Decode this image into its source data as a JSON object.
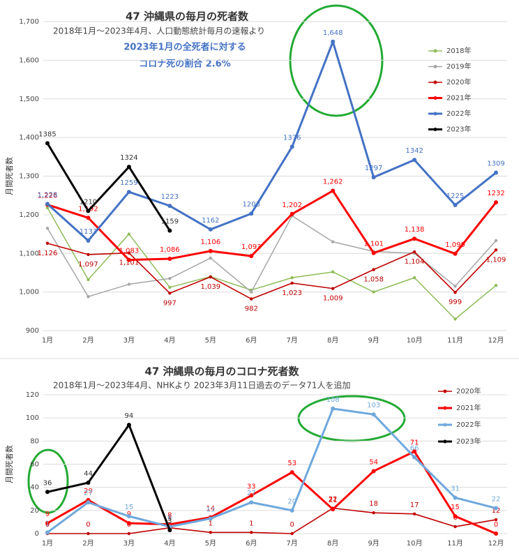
{
  "chart_data": [
    {
      "type": "line",
      "title": "47  沖縄県の毎月の死者数",
      "subtitle": "2018年1月～2023年4月、人口動態統計毎月の速報より",
      "annotations": [
        "2023年1月の全死者に対する",
        "コロナ死の割合  2.6%"
      ],
      "annotation_color": "#4472c4",
      "ylabel": "月間死者数",
      "categories": [
        "1月",
        "2月",
        "3月",
        "4月",
        "5月",
        "6月",
        "7月",
        "8月",
        "9月",
        "10月",
        "11月",
        "12月"
      ],
      "ylim": [
        900,
        1700
      ],
      "yticks": [
        {
          "value": 900,
          "label": "900"
        },
        {
          "value": 1000,
          "label": "1,000"
        },
        {
          "value": 1100,
          "label": "1,100"
        },
        {
          "value": 1200,
          "label": "1,200"
        },
        {
          "value": 1300,
          "label": "1,300"
        },
        {
          "value": 1400,
          "label": "1,400"
        },
        {
          "value": 1500,
          "label": "1,500"
        },
        {
          "value": 1600,
          "label": "1,600"
        },
        {
          "value": 1700,
          "label": "1,700"
        }
      ],
      "grid": true,
      "series": [
        {
          "name": "2018年",
          "color": "#8fbc5a",
          "values": [
            1218,
            1032,
            1150,
            1012,
            1040,
            1005,
            1037,
            1052,
            1000,
            1037,
            930,
            1017
          ]
        },
        {
          "name": "2019年",
          "color": "#a6a6a6",
          "values": [
            1165,
            988,
            1020,
            1035,
            1088,
            1000,
            1197,
            1130,
            1105,
            1100,
            1015,
            1133
          ]
        },
        {
          "name": "2020年",
          "color": "#c00000",
          "values": [
            1126,
            1097,
            1101,
            997,
            1039,
            982,
            1023,
            1009,
            1058,
            1104,
            999,
            1109
          ],
          "value_labels": [
            "1,126",
            "1,097",
            "1,101",
            "997",
            "1,039",
            "982",
            "1,023",
            "1,009",
            "1,058",
            "1,104",
            "999",
            "1,109"
          ]
        },
        {
          "name": "2021年",
          "color": "#ff0000",
          "values": [
            1226,
            1192,
            1083,
            1086,
            1106,
            1093,
            1202,
            1262,
            1101,
            1138,
            1099,
            1232
          ],
          "value_labels": [
            "1,226",
            "1,192",
            "1,083",
            "1,086",
            "1,106",
            "1,093",
            "1,202",
            "1,262",
            "1,101",
            "1,138",
            "1,099",
            "1232"
          ]
        },
        {
          "name": "2022年",
          "color": "#4472c4",
          "values": [
            1228,
            1133,
            1259,
            1223,
            1162,
            1203,
            1376,
            1648,
            1297,
            1342,
            1225,
            1309
          ],
          "value_labels": [
            "1,228",
            "1133",
            "1259",
            "1223",
            "1162",
            "1203",
            "1376",
            "1,648",
            "1297",
            "1342",
            "1225",
            "1309"
          ]
        },
        {
          "name": "2023年",
          "color": "#000000",
          "values": [
            1385,
            1210,
            1324,
            1159,
            null,
            null,
            null,
            null,
            null,
            null,
            null,
            null
          ],
          "value_labels": [
            "1385",
            "1210",
            "1324",
            "1159",
            null,
            null,
            null,
            null,
            null,
            null,
            null,
            null
          ]
        }
      ]
    },
    {
      "type": "line",
      "title": "47  沖縄県の毎月のコロナ死者数",
      "subtitle": "2018年1月～2023年4月、NHKより  2023年3月11日過去のデータ71人を追加",
      "ylabel": "月間死者数",
      "categories": [
        "1月",
        "2月",
        "3月",
        "4月",
        "5月",
        "6月",
        "7月",
        "8月",
        "9月",
        "10月",
        "11月",
        "12月"
      ],
      "ylim": [
        0,
        120
      ],
      "yticks": [
        0,
        20,
        40,
        60,
        80,
        100,
        120
      ],
      "grid": true,
      "series": [
        {
          "name": "2020年",
          "color": "#c00000",
          "values": [
            0,
            0,
            0,
            5,
            1,
            1,
            0,
            22,
            18,
            17,
            6,
            12
          ],
          "value_labels": [
            "0",
            "0",
            "0",
            "5",
            "1",
            "1",
            "0",
            "22",
            "18",
            "17",
            "6",
            "12"
          ]
        },
        {
          "name": "2021年",
          "color": "#ff0000",
          "values": [
            9,
            29,
            9,
            8,
            14,
            33,
            53,
            21,
            54,
            71,
            15,
            0
          ],
          "value_labels": [
            "9",
            "29",
            "9",
            "8",
            "14",
            "33",
            "53",
            "21",
            "54",
            "71",
            "15",
            "0"
          ]
        },
        {
          "name": "2022年",
          "color": "#6fa8dc",
          "values": [
            1,
            27,
            15,
            6,
            13,
            27,
            20,
            108,
            103,
            66,
            31,
            22
          ],
          "value_labels": [
            "1",
            "27",
            "15",
            "6",
            "13",
            "27",
            "20",
            "108",
            "103",
            "66",
            "31",
            "22"
          ]
        },
        {
          "name": "2023年",
          "color": "#000000",
          "values": [
            36,
            44,
            94,
            3,
            null,
            null,
            null,
            null,
            null,
            null,
            null,
            null
          ],
          "value_labels": [
            "36",
            "44",
            "94",
            "3",
            null,
            null,
            null,
            null,
            null,
            null,
            null,
            null
          ]
        }
      ]
    }
  ]
}
